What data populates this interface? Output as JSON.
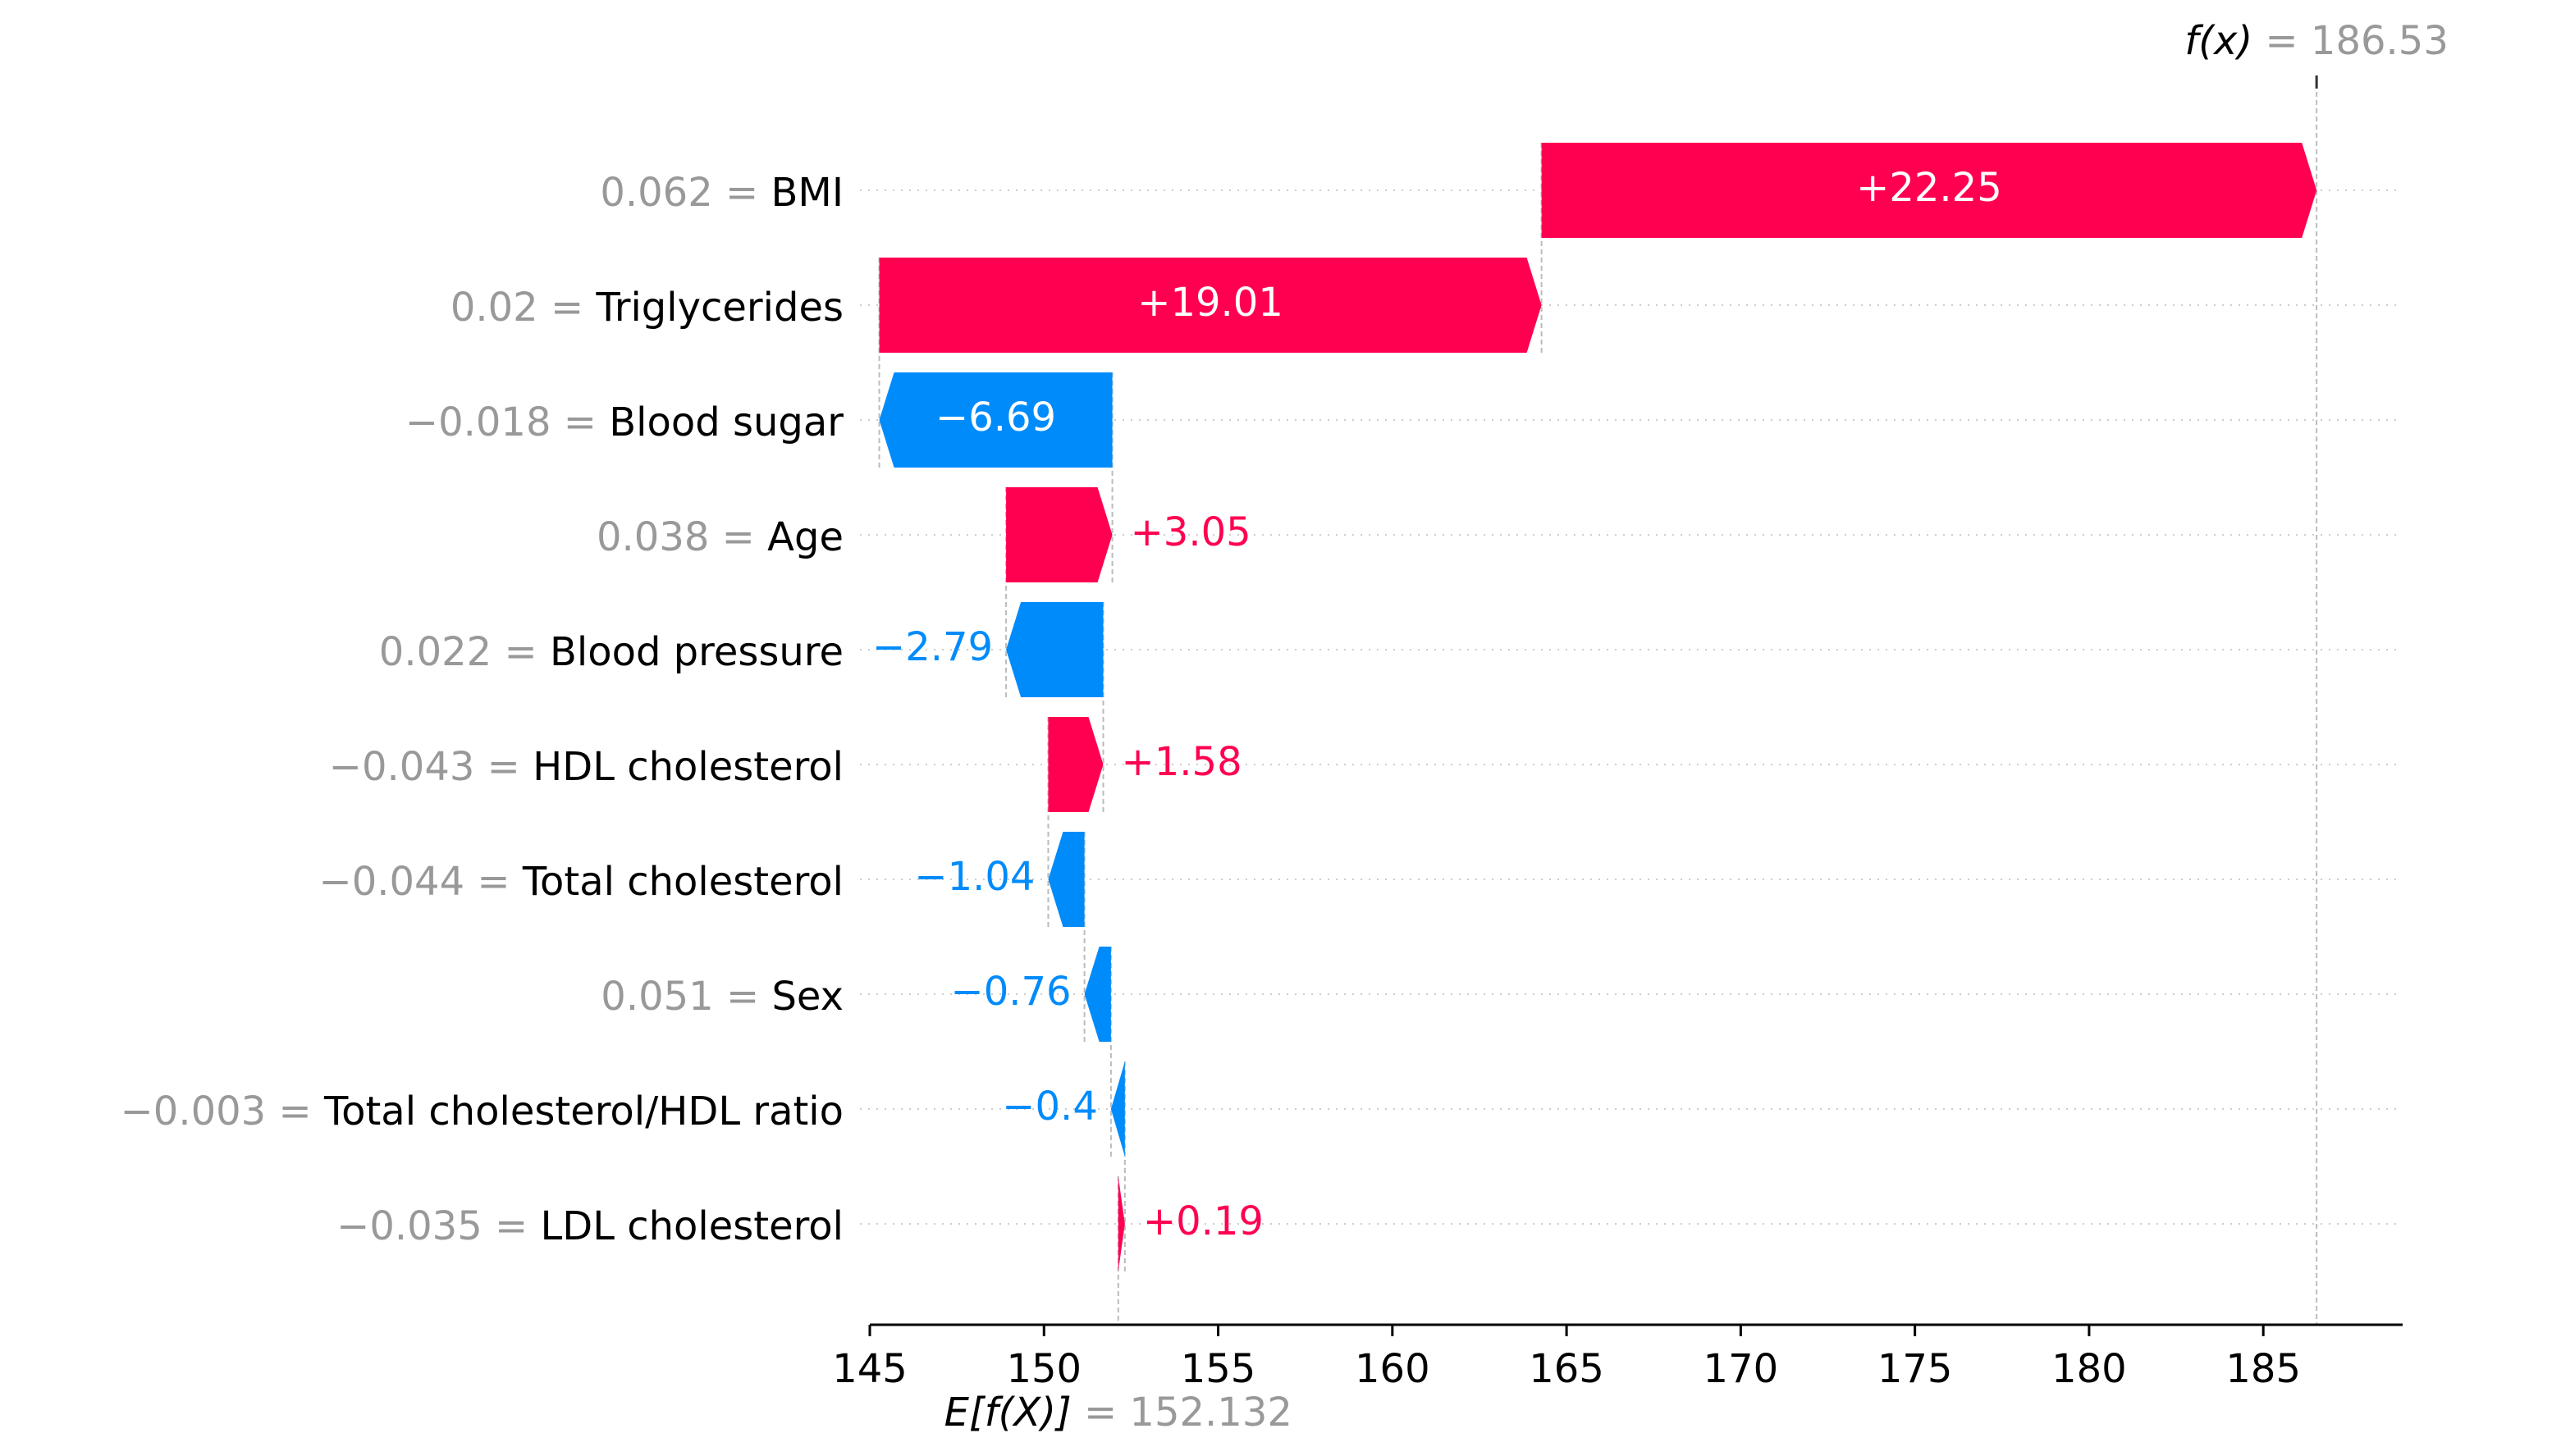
{
  "chart_data": {
    "type": "bar",
    "subtype": "waterfall",
    "base_value": 152.132,
    "output_value": 186.53,
    "base_label_expr": "E[f(X)]",
    "base_label_value": "= 152.132",
    "output_label_expr": "f(x)",
    "output_label_value": "= 186.53",
    "xlim": [
      145,
      189
    ],
    "xticks": [
      145,
      150,
      155,
      160,
      165,
      170,
      175,
      180,
      185
    ],
    "xtick_labels": [
      "145",
      "150",
      "155",
      "160",
      "165",
      "170",
      "175",
      "180",
      "185"
    ],
    "grid": "dotted row guides",
    "features": [
      {
        "value_text": "0.062 =",
        "name": "BMI",
        "contribution": 22.25,
        "label": "+22.25"
      },
      {
        "value_text": "0.02 =",
        "name": "Triglycerides",
        "contribution": 19.01,
        "label": "+19.01"
      },
      {
        "value_text": "−0.018 =",
        "name": "Blood sugar",
        "contribution": -6.69,
        "label": "−6.69"
      },
      {
        "value_text": "0.038 =",
        "name": "Age",
        "contribution": 3.05,
        "label": "+3.05"
      },
      {
        "value_text": "0.022 =",
        "name": "Blood pressure",
        "contribution": -2.79,
        "label": "−2.79"
      },
      {
        "value_text": "−0.043 =",
        "name": "HDL cholesterol",
        "contribution": 1.58,
        "label": "+1.58"
      },
      {
        "value_text": "−0.044 =",
        "name": "Total cholesterol",
        "contribution": -1.04,
        "label": "−1.04"
      },
      {
        "value_text": "0.051 =",
        "name": "Sex",
        "contribution": -0.76,
        "label": "−0.76"
      },
      {
        "value_text": "−0.003 =",
        "name": "Total cholesterol/HDL ratio",
        "contribution": -0.4,
        "label": "−0.4"
      },
      {
        "value_text": "−0.035 =",
        "name": "LDL cholesterol",
        "contribution": 0.19,
        "label": "+0.19"
      }
    ],
    "colors": {
      "positive": "#ff0051",
      "negative": "#008bfb",
      "value_text": "#999999",
      "name_text": "#000000",
      "guide": "#bbbbbb",
      "inside_label": "#ffffff"
    }
  }
}
